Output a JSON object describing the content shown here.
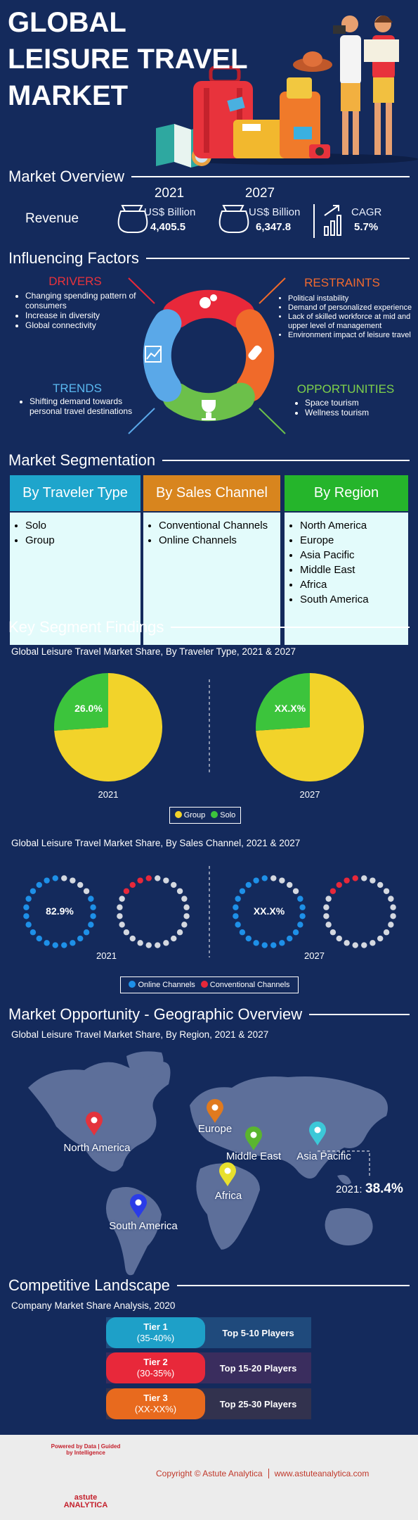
{
  "header": {
    "title_lines": [
      "GLOBAL",
      "LEISURE TRAVEL",
      "MARKET"
    ]
  },
  "overview": {
    "heading": "Market Overview",
    "row_label": "Revenue",
    "columns": [
      {
        "year": "2021",
        "unit": "US$ Billion",
        "value": "4,405.5"
      },
      {
        "year": "2027",
        "unit": "US$ Billion",
        "value": "6,347.8"
      }
    ],
    "cagr": {
      "label": "CAGR",
      "value": "5.7%"
    }
  },
  "factors": {
    "heading": "Influencing Factors",
    "drivers": {
      "title": "DRIVERS",
      "items": [
        "Changing spending pattern of consumers",
        "Increase in diversity",
        "Global connectivity"
      ]
    },
    "restraints": {
      "title": "RESTRAINTS",
      "items": [
        "Political instability",
        "Demand of personalized experience",
        "Lack of skilled workforce at mid and upper level of management",
        "Environment impact of leisure travel"
      ]
    },
    "trends": {
      "title": "TRENDS",
      "items": [
        "Shifting demand towards personal travel destinations"
      ]
    },
    "opportunities": {
      "title": "OPPORTUNITIES",
      "items": [
        "Space tourism",
        "Wellness tourism"
      ]
    }
  },
  "segmentation": {
    "heading": "Market Segmentation",
    "groups": [
      {
        "title": "By Traveler Type",
        "color": "#1ea5cc",
        "items": [
          "Solo",
          "Group"
        ]
      },
      {
        "title": "By Sales Channel",
        "color": "#d8851e",
        "items": [
          "Conventional Channels",
          "Online Channels"
        ]
      },
      {
        "title": "By Region",
        "color": "#25b52b",
        "items": [
          "North America",
          "Europe",
          "Asia Pacific",
          "Middle East",
          "Africa",
          "South America"
        ]
      }
    ]
  },
  "findings": {
    "heading": "Key Segment Findings",
    "traveler_type": {
      "type": "pie",
      "title": "Global Leisure Travel Market Share, By Traveler Type, 2021 & 2027",
      "categories": [
        "Group",
        "Solo"
      ],
      "colors": [
        "#f2d32a",
        "#3cc43c"
      ],
      "pies": [
        {
          "year": "2021",
          "values": [
            74.0,
            26.0
          ],
          "value_labels": [
            null,
            "26.0%"
          ]
        },
        {
          "year": "2027",
          "values": [
            74,
            26
          ],
          "value_labels": [
            null,
            "XX.X%"
          ]
        }
      ]
    },
    "sales_channel": {
      "type": "dot-ring",
      "title": "Global Leisure Travel Market Share, By Sales Channel, 2021 & 2027",
      "categories": [
        "Online Channels",
        "Conventional Channels"
      ],
      "colors": [
        "#1e90e8",
        "#e8283a"
      ],
      "rings": [
        {
          "year": "2021",
          "values": [
            82.9,
            17.1
          ],
          "value_labels": [
            "82.9%",
            null
          ]
        },
        {
          "year": "2027",
          "values": [
            83,
            17
          ],
          "value_labels": [
            "XX.X%",
            null
          ]
        }
      ]
    }
  },
  "geography": {
    "heading": "Market Opportunity - Geographic Overview",
    "subtitle": "Global Leisure Travel Market Share, By Region, 2021 & 2027",
    "regions": [
      {
        "name": "North America",
        "color": "#e3333c"
      },
      {
        "name": "Europe",
        "color": "#e07a1e"
      },
      {
        "name": "Middle East",
        "color": "#5ab52e"
      },
      {
        "name": "Asia Pacific",
        "color": "#3cc8d8"
      },
      {
        "name": "Africa",
        "color": "#e8e02e"
      },
      {
        "name": "South America",
        "color": "#2a3ce8"
      }
    ],
    "annotation": {
      "label": "2021:",
      "value": "38.4%"
    }
  },
  "competition": {
    "heading": "Competitive Landscape",
    "subtitle": "Company Market Share Analysis, 2020",
    "tiers": [
      {
        "name": "Tier 1",
        "share": "(35-40%)",
        "players": "Top 5-10 Players",
        "color": "#1ea0c8",
        "bar": "#1f4a7c"
      },
      {
        "name": "Tier 2",
        "share": "(30-35%)",
        "players": "Top 15-20 Players",
        "color": "#e8283a",
        "bar": "#3a2d5e"
      },
      {
        "name": "Tier 3",
        "share": "(XX-XX%)",
        "players": "Top 25-30 Players",
        "color": "#e86a1e",
        "bar": "#32324e"
      }
    ]
  },
  "footer": {
    "logo_tagline": "Powered by Data | Guided by Intelligence",
    "logo_name": "astute",
    "logo_sub": "ANALYTICA",
    "copyright": "Copyright © Astute Analytica",
    "website": "www.astuteanalytica.com"
  }
}
